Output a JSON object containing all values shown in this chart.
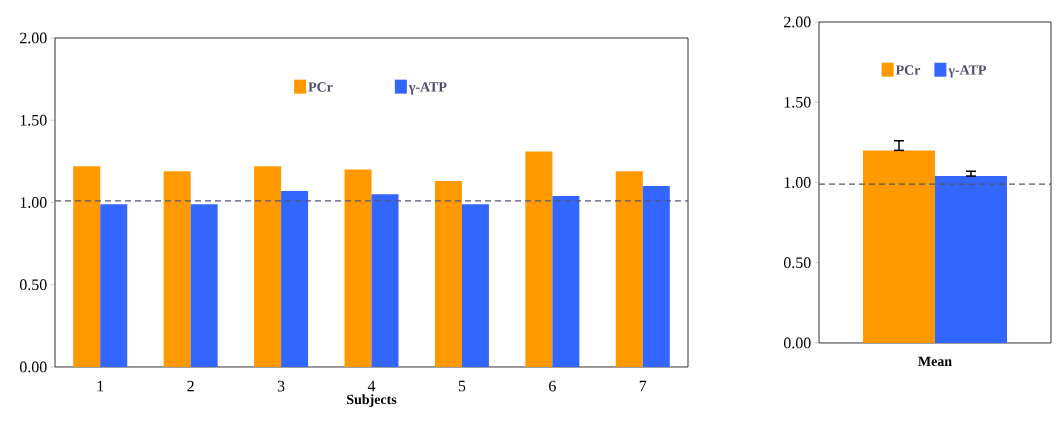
{
  "chart_data": [
    {
      "type": "bar",
      "xlabel": "Subjects",
      "categories": [
        "1",
        "2",
        "3",
        "4",
        "5",
        "6",
        "7"
      ],
      "series": [
        {
          "name": "PCr",
          "color": "#ff9900",
          "values": [
            1.22,
            1.19,
            1.22,
            1.2,
            1.13,
            1.31,
            1.19
          ]
        },
        {
          "name": "γ-ATP",
          "color": "#3366ff",
          "values": [
            0.99,
            0.99,
            1.07,
            1.05,
            0.99,
            1.04,
            1.1
          ]
        }
      ],
      "ylim": [
        0,
        2
      ],
      "yticks": [
        {
          "value": 0,
          "label": "0.00"
        },
        {
          "value": 0.5,
          "label": "0.50"
        },
        {
          "value": 1,
          "label": "1.00"
        },
        {
          "value": 1.5,
          "label": "1.50"
        },
        {
          "value": 2,
          "label": "2.00"
        }
      ],
      "ref_lines": [
        {
          "axis": "y",
          "value": 1.01,
          "color": "#555577",
          "line_style": "dashed"
        }
      ],
      "legend": "top",
      "grid": false
    },
    {
      "type": "bar",
      "categories": [
        "Mean"
      ],
      "series": [
        {
          "name": "PCr",
          "color": "#ff9900",
          "values": [
            1.2
          ],
          "errors": [
            [
              1.2,
              1.26
            ]
          ]
        },
        {
          "name": "γ-ATP",
          "color": "#3366ff",
          "values": [
            1.04
          ],
          "errors": [
            [
              1.04,
              1.07
            ]
          ]
        }
      ],
      "ylim": [
        0,
        2
      ],
      "yticks": [
        {
          "value": 0,
          "label": "0.00"
        },
        {
          "value": 0.5,
          "label": "0.50"
        },
        {
          "value": 1,
          "label": "1.00"
        },
        {
          "value": 1.5,
          "label": "1.50"
        },
        {
          "value": 2,
          "label": "2.00"
        }
      ],
      "ref_lines": [
        {
          "axis": "y",
          "value": 0.99,
          "color": "#555555",
          "line_style": "dashed"
        }
      ],
      "legend": "top",
      "grid": false
    }
  ]
}
